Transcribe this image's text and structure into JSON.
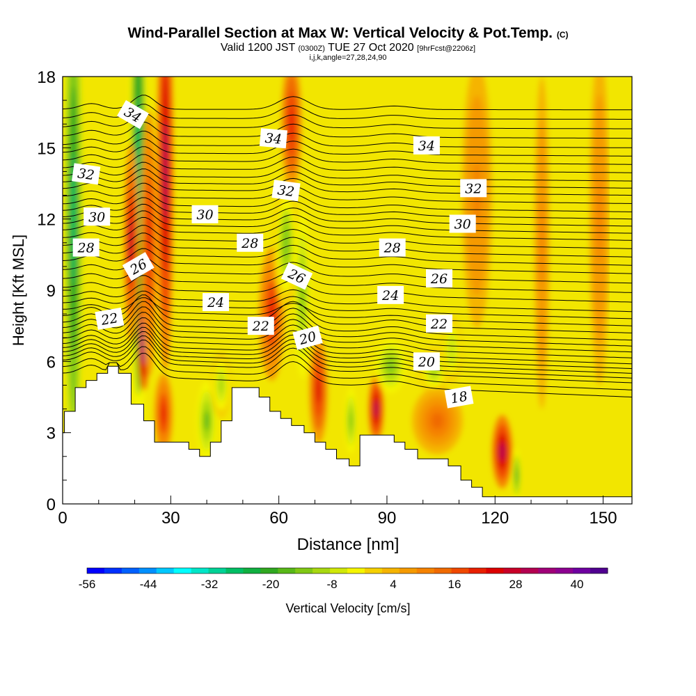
{
  "title": {
    "main": "Wind-Parallel Section at Max W: Vertical Velocity & Pot.Temp.",
    "copyright": "(C)",
    "valid_prefix": "Valid 1200 JST",
    "valid_utc": "(0300Z)",
    "valid_date": "TUE 27 Oct 2020",
    "forecast": "[9hrFcst@2206z]",
    "indices": "i,j,k,angle=27,28,24,90"
  },
  "colors": {
    "background_field": "#f2e600",
    "terrain": "#ffffff",
    "contour": "#000000",
    "scale": [
      "#0000ff",
      "#0030ff",
      "#0060ff",
      "#0090ff",
      "#00c8ff",
      "#00ffff",
      "#00e6c8",
      "#00d296",
      "#00be64",
      "#10b040",
      "#30a820",
      "#58b818",
      "#80c814",
      "#a8d810",
      "#d0e808",
      "#f5f500",
      "#f5d000",
      "#f5b400",
      "#f59a00",
      "#f58200",
      "#f06a00",
      "#f04800",
      "#e82000",
      "#dc0000",
      "#c80028",
      "#b40050",
      "#a00078",
      "#8c0090",
      "#6e00a0",
      "#500090"
    ]
  },
  "colorbar": {
    "ticks": [
      "-56",
      "-44",
      "-32",
      "-20",
      "-8",
      "4",
      "16",
      "28",
      "40"
    ],
    "label": "Vertical Velocity [cm/s]"
  },
  "contour_labels": [
    {
      "text": "34",
      "x": 19.5,
      "y": 16.4,
      "rot": 30
    },
    {
      "text": "34",
      "x": 58.5,
      "y": 15.4,
      "rot": 5
    },
    {
      "text": "34",
      "x": 101,
      "y": 15.1,
      "rot": 0
    },
    {
      "text": "32",
      "x": 6.5,
      "y": 13.9,
      "rot": 8
    },
    {
      "text": "32",
      "x": 62,
      "y": 13.2,
      "rot": 8
    },
    {
      "text": "32",
      "x": 114,
      "y": 13.3,
      "rot": 0
    },
    {
      "text": "30",
      "x": 9.5,
      "y": 12.1,
      "rot": 0
    },
    {
      "text": "30",
      "x": 39.5,
      "y": 12.2,
      "rot": 0
    },
    {
      "text": "30",
      "x": 111,
      "y": 11.8,
      "rot": 0
    },
    {
      "text": "28",
      "x": 6.5,
      "y": 10.8,
      "rot": 0
    },
    {
      "text": "28",
      "x": 52,
      "y": 11.0,
      "rot": 0
    },
    {
      "text": "28",
      "x": 91.5,
      "y": 10.8,
      "rot": 0
    },
    {
      "text": "26",
      "x": 21,
      "y": 10.0,
      "rot": -30
    },
    {
      "text": "26",
      "x": 65,
      "y": 9.6,
      "rot": 25
    },
    {
      "text": "26",
      "x": 104.5,
      "y": 9.5,
      "rot": 0
    },
    {
      "text": "24",
      "x": 42.5,
      "y": 8.5,
      "rot": 0
    },
    {
      "text": "24",
      "x": 91,
      "y": 8.8,
      "rot": 0
    },
    {
      "text": "22",
      "x": 13,
      "y": 7.8,
      "rot": -10
    },
    {
      "text": "22",
      "x": 55,
      "y": 7.5,
      "rot": 0
    },
    {
      "text": "22",
      "x": 104.5,
      "y": 7.6,
      "rot": 0
    },
    {
      "text": "20",
      "x": 68,
      "y": 7.0,
      "rot": -15
    },
    {
      "text": "20",
      "x": 101,
      "y": 6.0,
      "rot": 0
    },
    {
      "text": "18",
      "x": 110,
      "y": 4.5,
      "rot": -10
    }
  ],
  "chart_data": {
    "type": "heatmap",
    "title": "Wind-Parallel Section at Max W: Vertical Velocity & Pot.Temp.",
    "subtitle": "Valid 1200 JST (0300Z) TUE 27 Oct 2020 [9hrFcst@2206z]",
    "xlabel": "Distance [nm]",
    "ylabel": "Height [Kft MSL]",
    "xlim": [
      0,
      158
    ],
    "ylim": [
      0,
      18
    ],
    "x_ticks": [
      "0",
      "30",
      "60",
      "90",
      "120",
      "150"
    ],
    "y_ticks": [
      "0",
      "3",
      "6",
      "9",
      "12",
      "15",
      "18"
    ],
    "field": "Vertical Velocity [cm/s]",
    "color_range": [
      -56,
      46
    ],
    "contour_field": "Potential temperature",
    "terrain_profile": {
      "x": [
        0,
        0.5,
        0.5,
        3.5,
        3.5,
        6.5,
        6.5,
        9.5,
        9.5,
        12.5,
        12.5,
        15.5,
        15.5,
        19,
        19,
        22.5,
        22.5,
        25.5,
        25.5,
        28.5,
        28.5,
        35,
        35,
        38,
        38,
        41,
        41,
        44,
        44,
        47,
        47,
        50,
        50,
        54.5,
        54.5,
        57.5,
        57.5,
        60.5,
        60.5,
        63.5,
        63.5,
        67,
        67,
        70,
        70,
        73,
        73,
        76,
        76,
        79.5,
        79.5,
        82.5,
        82.5,
        86,
        86,
        92,
        92,
        95,
        95,
        98.5,
        98.5,
        107,
        107,
        110.5,
        110.5,
        113.5,
        113.5,
        116.5,
        116.5,
        158
      ],
      "y": [
        3.0,
        3.0,
        3.9,
        3.9,
        4.9,
        4.9,
        5.2,
        5.2,
        5.5,
        5.5,
        5.8,
        5.8,
        5.5,
        5.5,
        4.2,
        4.2,
        3.5,
        3.5,
        2.6,
        2.6,
        2.6,
        2.6,
        2.3,
        2.3,
        2.0,
        2.0,
        2.6,
        2.6,
        3.5,
        3.5,
        4.9,
        4.9,
        4.9,
        4.9,
        4.5,
        4.5,
        3.9,
        3.9,
        3.6,
        3.6,
        3.3,
        3.3,
        3.0,
        3.0,
        2.6,
        2.6,
        2.3,
        2.3,
        1.9,
        1.9,
        1.6,
        1.6,
        2.9,
        2.9,
        2.9,
        2.9,
        2.6,
        2.6,
        2.3,
        2.3,
        1.9,
        1.9,
        1.6,
        1.6,
        1.0,
        1.0,
        0.7,
        0.7,
        0.3,
        0.3
      ]
    },
    "w_features": [
      {
        "x": 3,
        "y": 12,
        "sx": 1.8,
        "sy": 8,
        "v": -28
      },
      {
        "x": 21,
        "y": 14,
        "sx": 1.8,
        "sy": 9,
        "v": -26
      },
      {
        "x": 28.5,
        "y": 14,
        "sx": 1.6,
        "sy": 6,
        "v": 30
      },
      {
        "x": 22.5,
        "y": 7,
        "sx": 1.2,
        "sy": 1.6,
        "v": 44
      },
      {
        "x": 19,
        "y": 11,
        "sx": 1.5,
        "sy": 3,
        "v": 26
      },
      {
        "x": 24,
        "y": 11,
        "sx": 1.6,
        "sy": 4,
        "v": 20
      },
      {
        "x": 28,
        "y": 3.8,
        "sx": 1.8,
        "sy": 1.2,
        "v": 20
      },
      {
        "x": 40,
        "y": 3.5,
        "sx": 2,
        "sy": 1.2,
        "v": -16
      },
      {
        "x": 44,
        "y": 5,
        "sx": 2,
        "sy": 1,
        "v": -10
      },
      {
        "x": 58,
        "y": 8,
        "sx": 2.5,
        "sy": 2,
        "v": 20
      },
      {
        "x": 62,
        "y": 11,
        "sx": 2.5,
        "sy": 2,
        "v": -12
      },
      {
        "x": 66.5,
        "y": 8.8,
        "sx": 1.5,
        "sy": 2.5,
        "v": -14
      },
      {
        "x": 63.5,
        "y": 16,
        "sx": 2,
        "sy": 2,
        "v": 22
      },
      {
        "x": 71,
        "y": 4.8,
        "sx": 1.8,
        "sy": 1.6,
        "v": 24
      },
      {
        "x": 80,
        "y": 3.5,
        "sx": 1.2,
        "sy": 1,
        "v": -14
      },
      {
        "x": 87,
        "y": 4,
        "sx": 1.5,
        "sy": 1,
        "v": 30
      },
      {
        "x": 91,
        "y": 5.8,
        "sx": 3,
        "sy": 0.8,
        "v": -14
      },
      {
        "x": 103,
        "y": 5.6,
        "sx": 3,
        "sy": 0.7,
        "v": -10
      },
      {
        "x": 108,
        "y": 6.5,
        "sx": 2,
        "sy": 1,
        "v": -8
      },
      {
        "x": 122,
        "y": 2.2,
        "sx": 2,
        "sy": 1.1,
        "v": 30
      },
      {
        "x": 126,
        "y": 1.2,
        "sx": 0.8,
        "sy": 0.8,
        "v": -20
      },
      {
        "x": 133,
        "y": 11,
        "sx": 1.5,
        "sy": 5,
        "v": 10
      },
      {
        "x": 149,
        "y": 12,
        "sx": 2,
        "sy": 5,
        "v": 10
      },
      {
        "x": 104,
        "y": 3.5,
        "sx": 5,
        "sy": 1,
        "v": 12
      },
      {
        "x": 115,
        "y": 13,
        "sx": 3,
        "sy": 4,
        "v": 10
      }
    ],
    "isentropes": {
      "levels": [
        17,
        17.5,
        18,
        18.5,
        19,
        19.5,
        20,
        20.5,
        21,
        21.5,
        22,
        22.5,
        23,
        23.5,
        24,
        24.5,
        25,
        25.5,
        26,
        26.5,
        27,
        27.5,
        28,
        28.5,
        29,
        29.5,
        30,
        30.5,
        31,
        31.5,
        32,
        32.5,
        33,
        33.5,
        34,
        34.5,
        35,
        35.5,
        36
      ],
      "base_heights_kft": [
        4.8,
        5.1,
        5.4,
        5.6,
        5.8,
        6.0,
        6.2,
        6.45,
        6.7,
        6.95,
        7.2,
        7.5,
        7.8,
        8.1,
        8.4,
        8.8,
        9.2,
        9.6,
        10.0,
        10.35,
        10.7,
        11.05,
        11.4,
        11.7,
        12.0,
        12.3,
        12.6,
        12.95,
        13.3,
        13.6,
        13.9,
        14.25,
        14.6,
        14.95,
        15.3,
        15.7,
        16.1,
        16.5,
        16.9
      ]
    }
  }
}
